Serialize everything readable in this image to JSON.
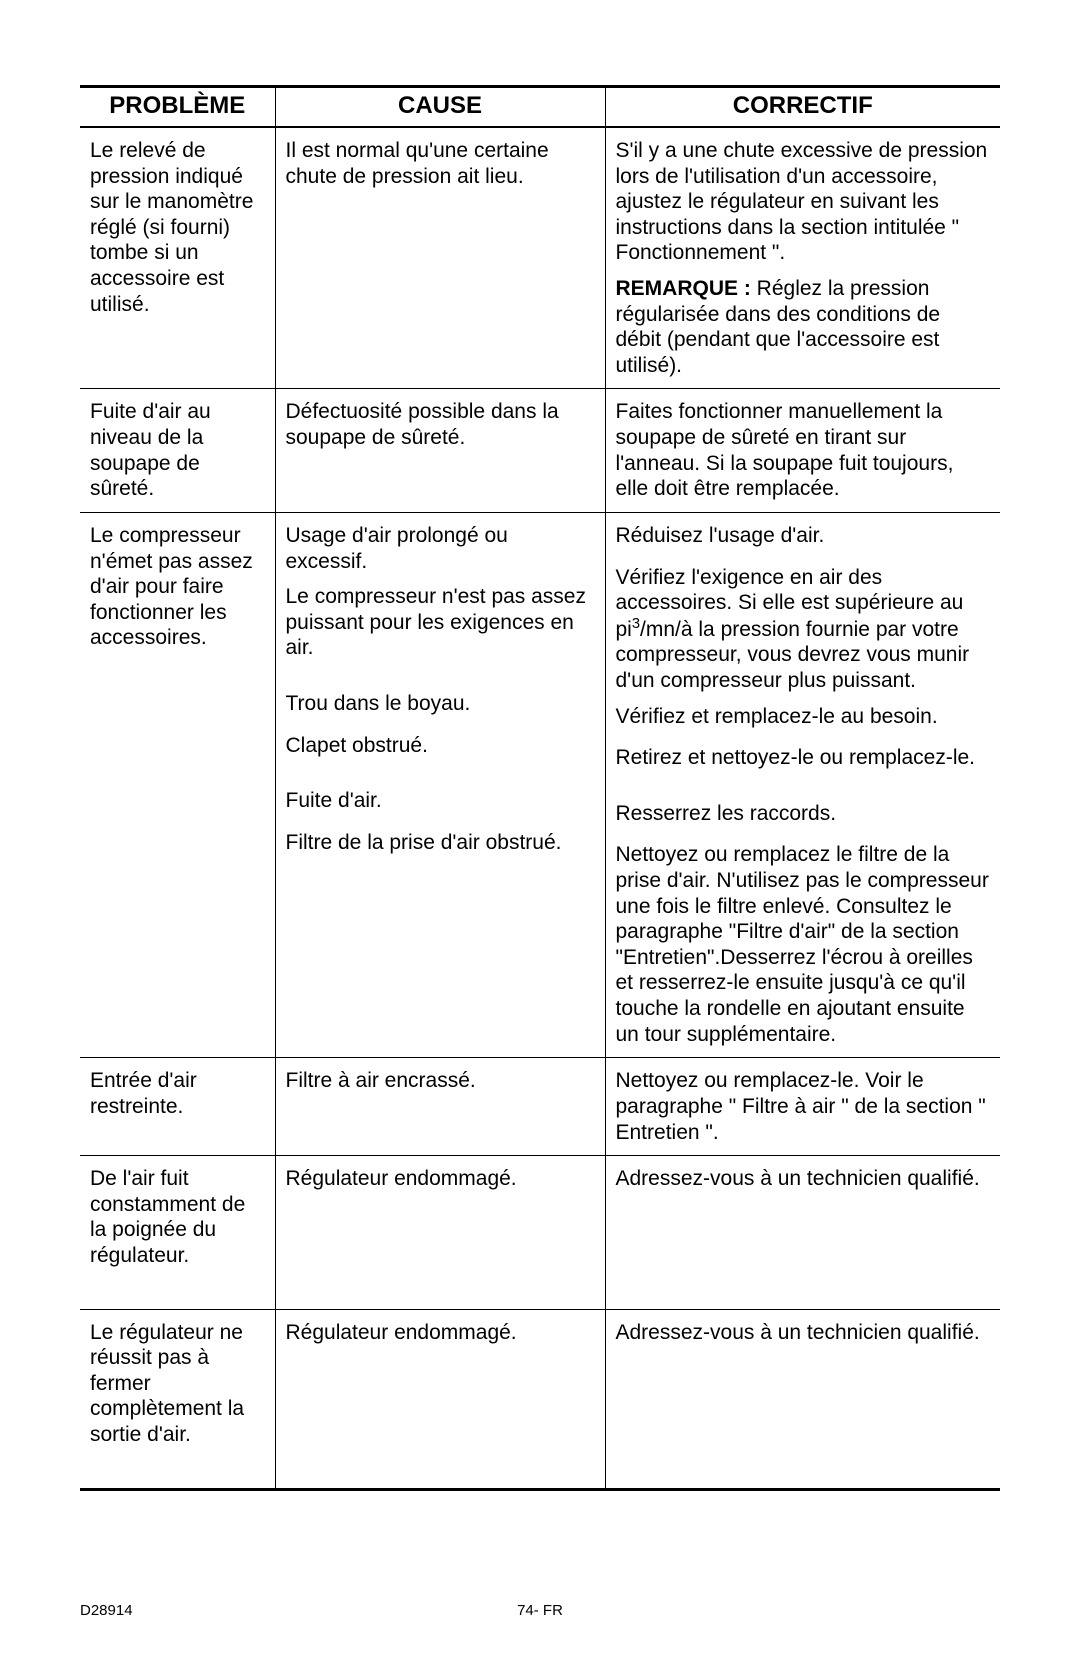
{
  "doc_id": "D28914",
  "page_label": "74- FR",
  "headers": {
    "problem": "PROBLÈME",
    "cause": "CAUSE",
    "fix": "CORRECTIF"
  },
  "rows": [
    {
      "problem": "Le relevé de pression indiqué sur le manomètre réglé (si fourni) tombe si un accessoire est utilisé.",
      "cause_blocks": [
        "Il est normal qu'une certaine chute de pression ait lieu."
      ],
      "fix_blocks": [
        "S'il y a une chute excessive de pression lors de l'utilisation d'un accessoire, ajustez le régulateur en suivant les instructions dans la section intitulée \" Fonctionnement \".",
        "<b>REMARQUE :</b> Réglez la pression régularisée dans des conditions de débit (pendant que l'accessoire est utilisé)."
      ]
    },
    {
      "problem": "Fuite d'air au niveau de la soupape de sûreté.",
      "cause_blocks": [
        "Défectuosité possible dans la soupape de sûreté."
      ],
      "fix_blocks": [
        "Faites fonctionner manuellement la soupape de sûreté en tirant sur l'anneau. Si la soupape fuit toujours, elle doit être remplacée."
      ]
    },
    {
      "problem": "Le compresseur n'émet pas assez d'air pour faire fonctionner les accessoires.",
      "cause_blocks": [
        "Usage d'air prolongé ou excessif.",
        "Le compresseur n'est pas assez puissant pour les exigences en air.",
        "__SPACER_MD__",
        "Trou dans le boyau.",
        "__SPACER_SM__",
        "Clapet obstrué.",
        "__SPACER_MD__",
        "Fuite d'air.",
        "__SPACER_SM__",
        "Filtre de la prise d'air obstrué."
      ],
      "fix_blocks": [
        "Réduisez l'usage d'air.",
        "__SPACER_SM__",
        "Vérifiez l'exigence en air des accessoires.  Si elle est supérieure au pi³/mn/à la pression fournie par votre compresseur, vous devrez vous munir d'un compresseur plus puissant.",
        "Vérifiez et remplacez-le au besoin.",
        "__SPACER_SM__",
        "Retirez et nettoyez-le ou remplacez-le.",
        "__SPACER_MD__",
        "Resserrez les raccords.",
        "__SPACER_SM__",
        "Nettoyez ou remplacez le filtre de la prise d'air. N'utilisez pas le compresseur une fois le filtre enlevé.  Consultez le paragraphe \"Filtre d'air\" de la section \"Entretien\".Desserrez l'écrou à oreilles et resserrez-le ensuite jusqu'à ce qu'il touche la rondelle en ajoutant ensuite un tour supplémentaire."
      ]
    },
    {
      "problem": "Entrée d'air restreinte.",
      "cause_blocks": [
        "Filtre à air encrassé."
      ],
      "fix_blocks": [
        "Nettoyez ou remplacez-le.  Voir le paragraphe \" Filtre à air \" de la section \" Entretien \"."
      ]
    },
    {
      "problem": "De l'air fuit constamment de la poignée du régulateur.",
      "cause_blocks": [
        "Régulateur endommagé."
      ],
      "fix_blocks": [
        "Adressez-vous à un technicien qualifié."
      ],
      "extra_pad": true
    },
    {
      "problem": "Le régulateur ne réussit pas à fermer complètement la sortie d'air.",
      "cause_blocks": [
        "Régulateur endommagé."
      ],
      "fix_blocks": [
        "Adressez-vous à un technicien qualifié."
      ],
      "last": true,
      "extra_pad": true
    }
  ]
}
